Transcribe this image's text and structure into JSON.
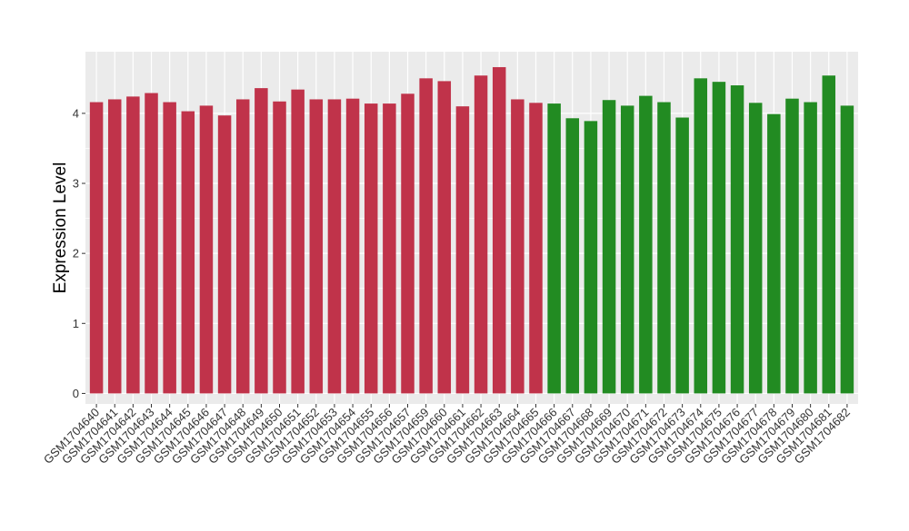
{
  "chart_data": {
    "type": "bar",
    "ylabel": "Expression Level",
    "xlabel": "",
    "ylim": [
      -0.15,
      4.88
    ],
    "yticks": [
      0,
      1,
      2,
      3,
      4
    ],
    "grid": true,
    "legend": "none",
    "colors": {
      "group_a": "#c0334a",
      "group_b": "#228b22",
      "panel": "#ebebeb",
      "gridline": "#ffffff"
    },
    "categories": [
      "GSM1704640",
      "GSM1704641",
      "GSM1704642",
      "GSM1704643",
      "GSM1704644",
      "GSM1704645",
      "GSM1704646",
      "GSM1704647",
      "GSM1704648",
      "GSM1704649",
      "GSM1704650",
      "GSM1704651",
      "GSM1704652",
      "GSM1704653",
      "GSM1704654",
      "GSM1704655",
      "GSM1704656",
      "GSM1704657",
      "GSM1704659",
      "GSM1704660",
      "GSM1704661",
      "GSM1704662",
      "GSM1704663",
      "GSM1704664",
      "GSM1704665",
      "GSM1704666",
      "GSM1704667",
      "GSM1704668",
      "GSM1704669",
      "GSM1704670",
      "GSM1704671",
      "GSM1704672",
      "GSM1704673",
      "GSM1704674",
      "GSM1704675",
      "GSM1704676",
      "GSM1704677",
      "GSM1704678",
      "GSM1704679",
      "GSM1704680",
      "GSM1704681",
      "GSM1704682"
    ],
    "values": [
      4.16,
      4.2,
      4.24,
      4.29,
      4.16,
      4.03,
      4.11,
      3.97,
      4.2,
      4.36,
      4.17,
      4.34,
      4.2,
      4.2,
      4.21,
      4.14,
      4.14,
      4.28,
      4.5,
      4.46,
      4.1,
      4.54,
      4.66,
      4.2,
      4.15,
      4.14,
      3.93,
      3.89,
      4.19,
      4.11,
      4.25,
      4.16,
      3.94,
      4.5,
      4.45,
      4.4,
      4.15,
      3.99,
      4.21,
      4.16,
      4.54,
      4.11
    ],
    "groups": [
      "a",
      "a",
      "a",
      "a",
      "a",
      "a",
      "a",
      "a",
      "a",
      "a",
      "a",
      "a",
      "a",
      "a",
      "a",
      "a",
      "a",
      "a",
      "a",
      "a",
      "a",
      "a",
      "a",
      "a",
      "a",
      "b",
      "b",
      "b",
      "b",
      "b",
      "b",
      "b",
      "b",
      "b",
      "b",
      "b",
      "b",
      "b",
      "b",
      "b",
      "b",
      "b"
    ]
  }
}
